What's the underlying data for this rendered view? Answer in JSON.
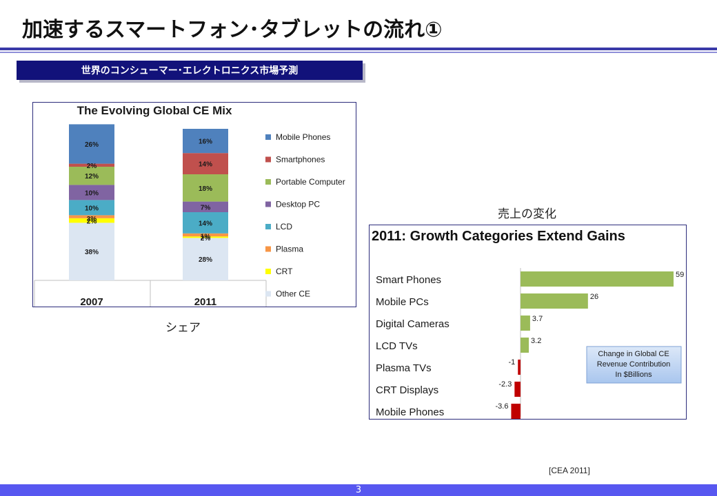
{
  "slide": {
    "title": "加速するスマートフォン･タブレットの流れ①",
    "section_label": "世界のコンシューマー･エレクトロニクス市場予測",
    "caption_share": "シェア",
    "caption_sales": "売上の変化",
    "source": "[CEA 2011]",
    "page_number": "3"
  },
  "colors": {
    "title_rule": "#3a3aa8",
    "section_bar": "#12127a",
    "footer": "#5757f0"
  },
  "chart_data": [
    {
      "type": "bar",
      "stacked": true,
      "title": "The Evolving Global CE Mix",
      "categories": [
        "2007",
        "2011"
      ],
      "series": [
        {
          "name": "Other CE",
          "color": "#dce6f2",
          "values": [
            38,
            28
          ]
        },
        {
          "name": "CRT",
          "color": "#ffff00",
          "values": [
            3,
            1
          ]
        },
        {
          "name": "Plasma",
          "color": "#f79646",
          "values": [
            2,
            2
          ]
        },
        {
          "name": "LCD",
          "color": "#4bacc6",
          "values": [
            10,
            14
          ]
        },
        {
          "name": "Desktop PC",
          "color": "#8064a2",
          "values": [
            10,
            7
          ]
        },
        {
          "name": "Portable Computer",
          "color": "#9bbb59",
          "values": [
            12,
            18
          ]
        },
        {
          "name": "Smartphones",
          "color": "#c0504d",
          "values": [
            2,
            14
          ]
        },
        {
          "name": "Mobile Phones",
          "color": "#4f81bd",
          "values": [
            26,
            16
          ]
        }
      ],
      "segment_labels": [
        [
          "38%",
          "3%",
          "2%",
          "10%",
          "10%",
          "12%",
          "2%",
          "26%"
        ],
        [
          "28%",
          "1%",
          "2%",
          "14%",
          "7%",
          "18%",
          "14%",
          "16%"
        ]
      ],
      "legend_order": [
        "Mobile Phones",
        "Smartphones",
        "Portable Computer",
        "Desktop PC",
        "LCD",
        "Plasma",
        "CRT",
        "Other CE"
      ],
      "legend_position": "right",
      "ylim": [
        0,
        100
      ]
    },
    {
      "type": "bar",
      "orientation": "horizontal",
      "title": "2011: Growth Categories Extend Gains",
      "categories": [
        "Smart Phones",
        "Mobile PCs",
        "Digital Cameras",
        "LCD TVs",
        "Plasma TVs",
        "CRT Displays",
        "Mobile Phones"
      ],
      "values": [
        59,
        26,
        3.7,
        3.2,
        -1,
        -2.3,
        -3.6
      ],
      "value_labels": [
        "59",
        "26",
        "3.7",
        "3.2",
        "-1",
        "-2.3",
        "-3.6"
      ],
      "positive_color": "#9bbb59",
      "negative_color": "#c00000",
      "annotation": [
        "Change in Global CE",
        "Revenue Contribution",
        "In $Billions"
      ]
    }
  ]
}
